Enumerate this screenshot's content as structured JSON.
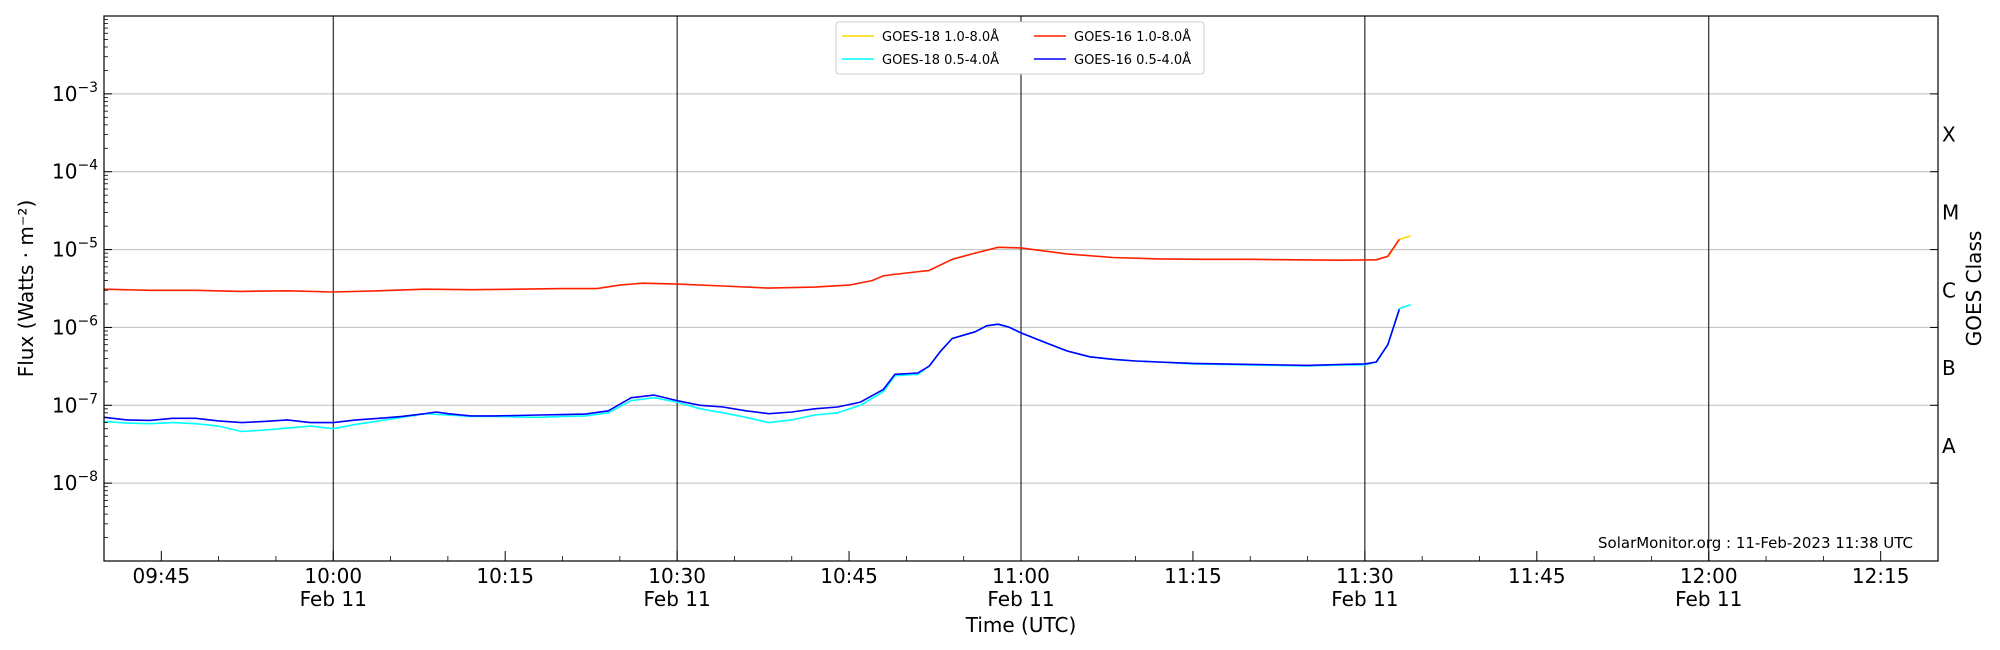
{
  "chart_data": {
    "type": "line",
    "xlabel": "Time (UTC)",
    "ylabel": "Flux (Watts · m⁻²)",
    "right_label": "GOES Class",
    "credit": "SolarMonitor.org : 11-Feb-2023 11:38 UTC",
    "y_scale": "log",
    "ylim": [
      1e-09,
      0.01
    ],
    "xlim": [
      "09:40",
      "12:20"
    ],
    "grid": "horizontal at each decade",
    "x_ticks": [
      {
        "time": "09:45",
        "label": "09:45",
        "date": ""
      },
      {
        "time": "10:00",
        "label": "10:00",
        "date": "Feb 11"
      },
      {
        "time": "10:15",
        "label": "10:15",
        "date": ""
      },
      {
        "time": "10:30",
        "label": "10:30",
        "date": "Feb 11"
      },
      {
        "time": "10:45",
        "label": "10:45",
        "date": ""
      },
      {
        "time": "11:00",
        "label": "11:00",
        "date": "Feb 11"
      },
      {
        "time": "11:15",
        "label": "11:15",
        "date": ""
      },
      {
        "time": "11:30",
        "label": "11:30",
        "date": "Feb 11"
      },
      {
        "time": "11:45",
        "label": "11:45",
        "date": ""
      },
      {
        "time": "12:00",
        "label": "12:00",
        "date": "Feb 11"
      },
      {
        "time": "12:15",
        "label": "12:15",
        "date": ""
      }
    ],
    "day_boundary_lines": [
      "10:00",
      "10:30",
      "11:00",
      "11:30",
      "12:00"
    ],
    "y_ticks": [
      {
        "value": 1e-08,
        "base": "10",
        "exp": "−8"
      },
      {
        "value": 1e-07,
        "base": "10",
        "exp": "−7"
      },
      {
        "value": 1e-06,
        "base": "10",
        "exp": "−6"
      },
      {
        "value": 1e-05,
        "base": "10",
        "exp": "−5"
      },
      {
        "value": 0.0001,
        "base": "10",
        "exp": "−4"
      },
      {
        "value": 0.001,
        "base": "10",
        "exp": "−3"
      }
    ],
    "goes_classes": [
      {
        "label": "A",
        "value": 3e-08
      },
      {
        "label": "B",
        "value": 3e-07
      },
      {
        "label": "C",
        "value": 3e-06
      },
      {
        "label": "M",
        "value": 3e-05
      },
      {
        "label": "X",
        "value": 0.0003
      }
    ],
    "legend": {
      "placement": "top-center",
      "entries": [
        {
          "series": "goes18_long",
          "text": "GOES-18 1.0-8.0Å"
        },
        {
          "series": "goes16_long",
          "text": "GOES-16 1.0-8.0Å"
        },
        {
          "series": "goes18_short",
          "text": "GOES-18 0.5-4.0Å"
        },
        {
          "series": "goes16_short",
          "text": "GOES-16 0.5-4.0Å"
        }
      ]
    },
    "series": [
      {
        "id": "goes18_long",
        "name": "GOES-18 1.0-8.0Å",
        "color": "#ffd700",
        "points": [
          [
            "11:32",
            8e-06
          ],
          [
            "11:33",
            1.35e-05
          ],
          [
            "11:34",
            1.5e-05
          ]
        ]
      },
      {
        "id": "goes18_short",
        "name": "GOES-18 0.5-4.0Å",
        "color": "#00ffff",
        "points": [
          [
            "09:40",
            6.2e-08
          ],
          [
            "09:42",
            5.9e-08
          ],
          [
            "09:44",
            5.8e-08
          ],
          [
            "09:46",
            6e-08
          ],
          [
            "09:48",
            5.8e-08
          ],
          [
            "09:50",
            5.4e-08
          ],
          [
            "09:52",
            4.6e-08
          ],
          [
            "09:54",
            4.8e-08
          ],
          [
            "09:56",
            5.1e-08
          ],
          [
            "09:58",
            5.4e-08
          ],
          [
            "10:00",
            5e-08
          ],
          [
            "10:02",
            5.7e-08
          ],
          [
            "10:04",
            6.3e-08
          ],
          [
            "10:06",
            7e-08
          ],
          [
            "10:08",
            7.8e-08
          ],
          [
            "10:10",
            7.5e-08
          ],
          [
            "10:12",
            7.2e-08
          ],
          [
            "10:14",
            7.2e-08
          ],
          [
            "10:16",
            7.1e-08
          ],
          [
            "10:18",
            7e-08
          ],
          [
            "10:20",
            7.2e-08
          ],
          [
            "10:22",
            7.3e-08
          ],
          [
            "10:24",
            8e-08
          ],
          [
            "10:26",
            1.15e-07
          ],
          [
            "10:28",
            1.25e-07
          ],
          [
            "10:30",
            1.1e-07
          ],
          [
            "10:32",
            9e-08
          ],
          [
            "10:34",
            8e-08
          ],
          [
            "10:36",
            7e-08
          ],
          [
            "10:38",
            6e-08
          ],
          [
            "10:40",
            6.5e-08
          ],
          [
            "10:42",
            7.5e-08
          ],
          [
            "10:44",
            8e-08
          ],
          [
            "10:46",
            1e-07
          ],
          [
            "10:48",
            1.5e-07
          ],
          [
            "10:49",
            2.4e-07
          ],
          [
            "10:51",
            2.5e-07
          ],
          [
            "10:52",
            3.2e-07
          ],
          [
            "10:53",
            5e-07
          ],
          [
            "10:54",
            7.2e-07
          ],
          [
            "10:56",
            8.8e-07
          ],
          [
            "10:57",
            1.05e-06
          ],
          [
            "10:58",
            1.1e-06
          ],
          [
            "10:59",
            1e-06
          ],
          [
            "11:00",
            8.5e-07
          ],
          [
            "11:02",
            6.5e-07
          ],
          [
            "11:04",
            5e-07
          ],
          [
            "11:06",
            4.2e-07
          ],
          [
            "11:08",
            3.9e-07
          ],
          [
            "11:10",
            3.7e-07
          ],
          [
            "11:12",
            3.6e-07
          ],
          [
            "11:15",
            3.4e-07
          ],
          [
            "11:20",
            3.3e-07
          ],
          [
            "11:25",
            3.2e-07
          ],
          [
            "11:28",
            3.3e-07
          ],
          [
            "11:30",
            3.3e-07
          ],
          [
            "11:31",
            3.6e-07
          ],
          [
            "11:32",
            6e-07
          ],
          [
            "11:33",
            1.75e-06
          ],
          [
            "11:34",
            1.95e-06
          ]
        ]
      },
      {
        "id": "goes16_long",
        "name": "GOES-16 1.0-8.0Å",
        "color": "#ff2000",
        "points": [
          [
            "09:40",
            3.1e-06
          ],
          [
            "09:44",
            3e-06
          ],
          [
            "09:48",
            3e-06
          ],
          [
            "09:52",
            2.9e-06
          ],
          [
            "09:56",
            2.95e-06
          ],
          [
            "10:00",
            2.85e-06
          ],
          [
            "10:04",
            2.95e-06
          ],
          [
            "10:08",
            3.1e-06
          ],
          [
            "10:12",
            3.05e-06
          ],
          [
            "10:16",
            3.1e-06
          ],
          [
            "10:20",
            3.15e-06
          ],
          [
            "10:23",
            3.15e-06
          ],
          [
            "10:25",
            3.5e-06
          ],
          [
            "10:27",
            3.7e-06
          ],
          [
            "10:30",
            3.6e-06
          ],
          [
            "10:34",
            3.4e-06
          ],
          [
            "10:38",
            3.2e-06
          ],
          [
            "10:42",
            3.3e-06
          ],
          [
            "10:45",
            3.5e-06
          ],
          [
            "10:47",
            4e-06
          ],
          [
            "10:48",
            4.6e-06
          ],
          [
            "10:50",
            5e-06
          ],
          [
            "10:52",
            5.4e-06
          ],
          [
            "10:54",
            7.5e-06
          ],
          [
            "10:56",
            9e-06
          ],
          [
            "10:58",
            1.07e-05
          ],
          [
            "11:00",
            1.05e-05
          ],
          [
            "11:04",
            8.8e-06
          ],
          [
            "11:08",
            7.9e-06
          ],
          [
            "11:12",
            7.6e-06
          ],
          [
            "11:16",
            7.5e-06
          ],
          [
            "11:20",
            7.5e-06
          ],
          [
            "11:24",
            7.4e-06
          ],
          [
            "11:28",
            7.3e-06
          ],
          [
            "11:31",
            7.4e-06
          ],
          [
            "11:32",
            8.2e-06
          ],
          [
            "11:33",
            1.35e-05
          ]
        ]
      },
      {
        "id": "goes16_short",
        "name": "GOES-16 0.5-4.0Å",
        "color": "#0000ff",
        "points": [
          [
            "09:40",
            7e-08
          ],
          [
            "09:42",
            6.5e-08
          ],
          [
            "09:44",
            6.4e-08
          ],
          [
            "09:46",
            6.8e-08
          ],
          [
            "09:48",
            6.8e-08
          ],
          [
            "09:50",
            6.3e-08
          ],
          [
            "09:52",
            6e-08
          ],
          [
            "09:54",
            6.2e-08
          ],
          [
            "09:56",
            6.5e-08
          ],
          [
            "09:58",
            6e-08
          ],
          [
            "10:00",
            6e-08
          ],
          [
            "10:02",
            6.5e-08
          ],
          [
            "10:04",
            6.8e-08
          ],
          [
            "10:06",
            7.2e-08
          ],
          [
            "10:08",
            7.8e-08
          ],
          [
            "10:09",
            8.2e-08
          ],
          [
            "10:10",
            7.8e-08
          ],
          [
            "10:12",
            7.3e-08
          ],
          [
            "10:14",
            7.3e-08
          ],
          [
            "10:16",
            7.4e-08
          ],
          [
            "10:18",
            7.5e-08
          ],
          [
            "10:20",
            7.6e-08
          ],
          [
            "10:22",
            7.7e-08
          ],
          [
            "10:24",
            8.5e-08
          ],
          [
            "10:26",
            1.25e-07
          ],
          [
            "10:28",
            1.35e-07
          ],
          [
            "10:30",
            1.15e-07
          ],
          [
            "10:32",
            1e-07
          ],
          [
            "10:34",
            9.5e-08
          ],
          [
            "10:36",
            8.5e-08
          ],
          [
            "10:38",
            7.8e-08
          ],
          [
            "10:40",
            8.2e-08
          ],
          [
            "10:42",
            9e-08
          ],
          [
            "10:44",
            9.5e-08
          ],
          [
            "10:46",
            1.1e-07
          ],
          [
            "10:48",
            1.6e-07
          ],
          [
            "10:49",
            2.5e-07
          ],
          [
            "10:51",
            2.6e-07
          ],
          [
            "10:52",
            3.2e-07
          ],
          [
            "10:53",
            5e-07
          ],
          [
            "10:54",
            7.2e-07
          ],
          [
            "10:56",
            8.8e-07
          ],
          [
            "10:57",
            1.05e-06
          ],
          [
            "10:58",
            1.1e-06
          ],
          [
            "10:59",
            1e-06
          ],
          [
            "11:00",
            8.5e-07
          ],
          [
            "11:02",
            6.5e-07
          ],
          [
            "11:04",
            5e-07
          ],
          [
            "11:06",
            4.2e-07
          ],
          [
            "11:08",
            3.9e-07
          ],
          [
            "11:10",
            3.7e-07
          ],
          [
            "11:12",
            3.6e-07
          ],
          [
            "11:15",
            3.45e-07
          ],
          [
            "11:20",
            3.35e-07
          ],
          [
            "11:25",
            3.25e-07
          ],
          [
            "11:28",
            3.35e-07
          ],
          [
            "11:30",
            3.4e-07
          ],
          [
            "11:31",
            3.6e-07
          ],
          [
            "11:32",
            6e-07
          ],
          [
            "11:33",
            1.7e-06
          ]
        ]
      }
    ]
  }
}
